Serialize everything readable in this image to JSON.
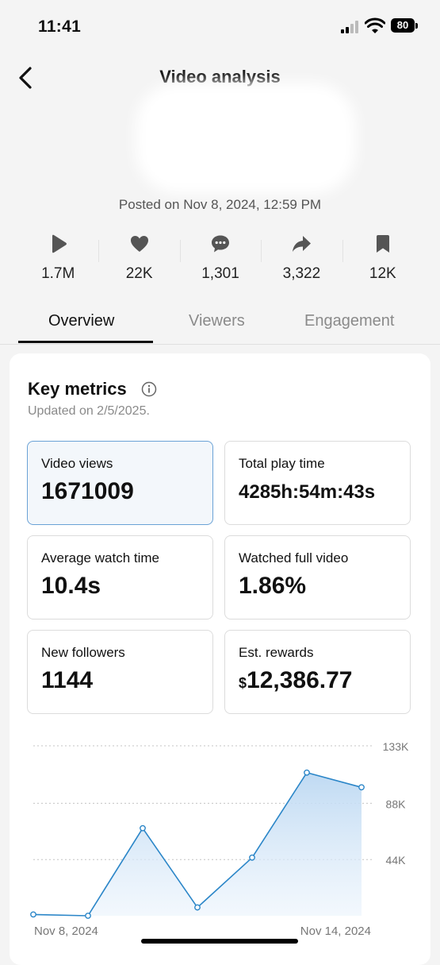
{
  "status_bar": {
    "time": "11:41",
    "battery": "80"
  },
  "header": {
    "title": "Video analysis",
    "posted": "Posted on Nov 8, 2024, 12:59 PM"
  },
  "stats": [
    {
      "icon": "play-icon",
      "value": "1.7M"
    },
    {
      "icon": "heart-icon",
      "value": "22K"
    },
    {
      "icon": "comment-icon",
      "value": "1,301"
    },
    {
      "icon": "share-icon",
      "value": "3,322"
    },
    {
      "icon": "bookmark-icon",
      "value": "12K"
    }
  ],
  "tabs": [
    {
      "label": "Overview",
      "active": true
    },
    {
      "label": "Viewers",
      "active": false
    },
    {
      "label": "Engagement",
      "active": false
    }
  ],
  "key_metrics": {
    "title": "Key metrics",
    "updated": "Updated on 2/5/2025.",
    "items": [
      {
        "label": "Video views",
        "value": "1671009",
        "selected": true
      },
      {
        "label": "Total play time",
        "value": "4285h:54m:43s"
      },
      {
        "label": "Average watch time",
        "value": "10.4s"
      },
      {
        "label": "Watched full video",
        "value": "1.86%"
      },
      {
        "label": "New followers",
        "value": "1144"
      },
      {
        "label": "Est. rewards",
        "currency": "$",
        "value": "12,386.77"
      }
    ]
  },
  "colors": {
    "line": "#2b86c8",
    "fill": "#cfe3f6",
    "accent_border": "#6aa2d6"
  },
  "chart_data": {
    "type": "area",
    "x": [
      "Nov 8, 2024",
      "Nov 9, 2024",
      "Nov 10, 2024",
      "Nov 11, 2024",
      "Nov 12, 2024",
      "Nov 13, 2024",
      "Nov 14, 2024"
    ],
    "values": [
      1000,
      0,
      68500,
      6500,
      45500,
      112000,
      100500
    ],
    "x_tick_labels": [
      "Nov 8, 2024",
      "Nov 14, 2024"
    ],
    "y_ticks": [
      {
        "value": 44000,
        "label": "44K"
      },
      {
        "value": 88000,
        "label": "88K"
      },
      {
        "value": 133000,
        "label": "133K"
      }
    ],
    "ylim": [
      0,
      133000
    ],
    "grid": true
  }
}
